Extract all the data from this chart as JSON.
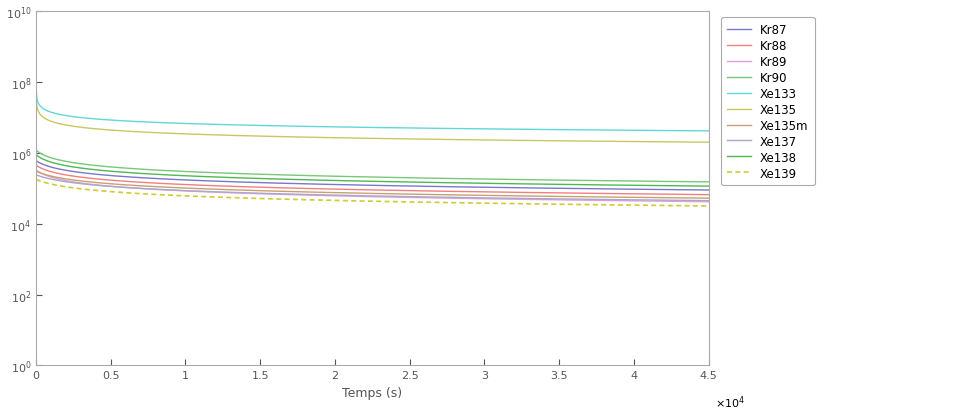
{
  "xlabel": "Temps (s)",
  "xlim": [
    0,
    45000
  ],
  "xticks": [
    0,
    5000,
    10000,
    15000,
    20000,
    25000,
    30000,
    35000,
    40000,
    45000
  ],
  "xtick_labels": [
    "0",
    "0.5",
    "1",
    "1.5",
    "2",
    "2.5",
    "3",
    "3.5",
    "4",
    "4.5"
  ],
  "yticks": [
    1.0,
    100.0,
    10000.0,
    1000000.0,
    100000000.0,
    10000000000.0
  ],
  "series": [
    {
      "label": "Kr87",
      "color": "#7878cc",
      "linestyle": "-",
      "y0_log": 5.78,
      "yend_log": 4.95,
      "power": 0.45
    },
    {
      "label": "Kr88",
      "color": "#f08080",
      "linestyle": "-",
      "y0_log": 5.65,
      "yend_log": 4.82,
      "power": 0.45
    },
    {
      "label": "Kr89",
      "color": "#e0a0e0",
      "linestyle": "-",
      "y0_log": 5.52,
      "yend_log": 4.62,
      "power": 0.48
    },
    {
      "label": "Kr90",
      "color": "#78c878",
      "linestyle": "-",
      "y0_log": 6.08,
      "yend_log": 5.18,
      "power": 0.46
    },
    {
      "label": "Xe133",
      "color": "#60d8d8",
      "linestyle": "-",
      "y0_log": 7.85,
      "yend_log": 6.62,
      "power": 0.32
    },
    {
      "label": "Xe135",
      "color": "#c8c860",
      "linestyle": "-",
      "y0_log": 7.55,
      "yend_log": 6.3,
      "power": 0.36
    },
    {
      "label": "Xe135m",
      "color": "#c8a070",
      "linestyle": "-",
      "y0_log": 5.48,
      "yend_log": 4.72,
      "power": 0.46
    },
    {
      "label": "Xe137",
      "color": "#a8a8c8",
      "linestyle": "-",
      "y0_log": 5.38,
      "yend_log": 4.65,
      "power": 0.46
    },
    {
      "label": "Xe138",
      "color": "#50b850",
      "linestyle": "-",
      "y0_log": 5.95,
      "yend_log": 5.06,
      "power": 0.46
    },
    {
      "label": "Xe139",
      "color": "#d0cc30",
      "linestyle": "dotted",
      "y0_log": 5.25,
      "yend_log": 4.5,
      "power": 0.46
    }
  ],
  "figure_facecolor": "#ffffff",
  "axes_facecolor": "#ffffff",
  "spine_color": "#aaaaaa",
  "tick_color": "#555555",
  "legend_fontsize": 8.5,
  "xlabel_fontsize": 9,
  "tick_fontsize": 8
}
